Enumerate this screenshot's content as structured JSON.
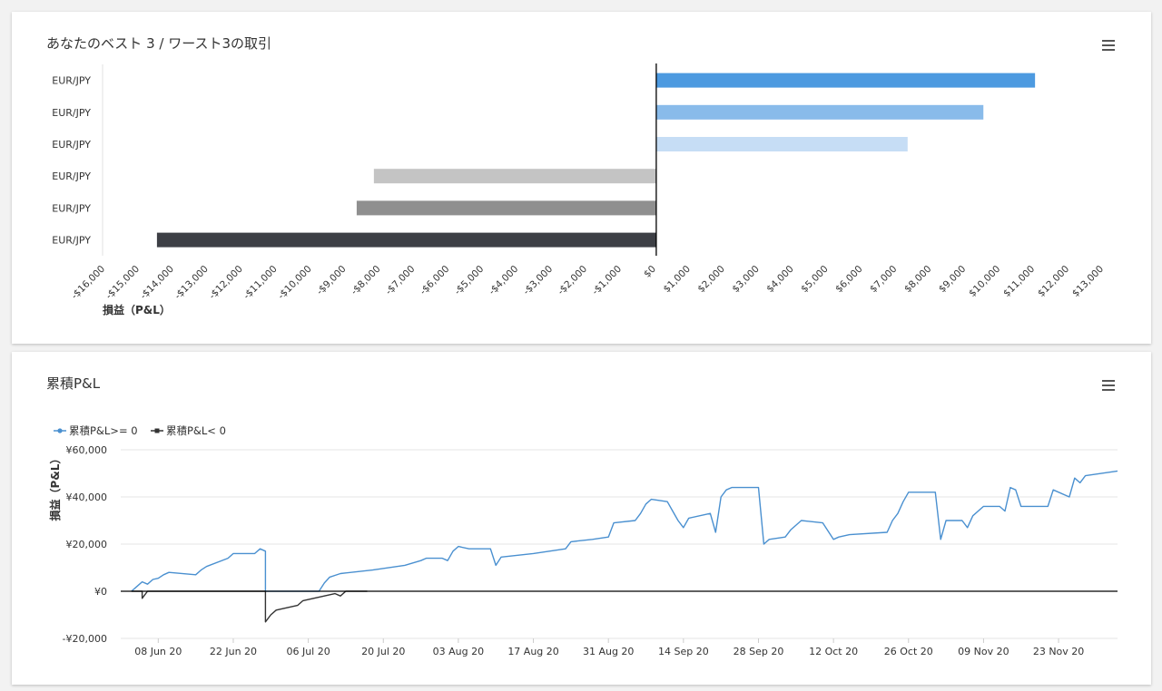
{
  "colors": {
    "positive_series": "#4a90d0",
    "negative_series": "#333333",
    "bars": [
      "#4d9ae0",
      "#89bbea",
      "#c6ddf5",
      "#c4c4c4",
      "#8f8f8f",
      "#3d3f45"
    ]
  },
  "chart_data": [
    {
      "type": "bar",
      "orientation": "horizontal",
      "title": "あなたのベスト 3 / ワースト3の取引",
      "xlabel": "損益（P&L）",
      "ylabel": "",
      "categories": [
        "EUR/JPY",
        "EUR/JPY",
        "EUR/JPY",
        "EUR/JPY",
        "EUR/JPY",
        "EUR/JPY"
      ],
      "values": [
        11000,
        9500,
        7300,
        -8200,
        -8700,
        -14500
      ],
      "xlim": [
        -16000,
        13000
      ],
      "xticks": [
        -16000,
        -15000,
        -14000,
        -13000,
        -12000,
        -11000,
        -10000,
        -9000,
        -8000,
        -7000,
        -6000,
        -5000,
        -4000,
        -3000,
        -2000,
        -1000,
        0,
        1000,
        2000,
        3000,
        4000,
        5000,
        6000,
        7000,
        8000,
        9000,
        10000,
        11000,
        12000,
        13000
      ],
      "xtick_labels": [
        "-$16,000",
        "-$15,000",
        "-$14,000",
        "-$13,000",
        "-$12,000",
        "-$11,000",
        "-$10,000",
        "-$9,000",
        "-$8,000",
        "-$7,000",
        "-$6,000",
        "-$5,000",
        "-$4,000",
        "-$3,000",
        "-$2,000",
        "-$1,000",
        "$0",
        "$1,000",
        "$2,000",
        "$3,000",
        "$4,000",
        "$5,000",
        "$6,000",
        "$7,000",
        "$8,000",
        "$9,000",
        "$10,000",
        "$11,000",
        "$12,000",
        "$13,000"
      ],
      "grid": false,
      "legend": "none"
    },
    {
      "type": "line",
      "title": "累積P&L",
      "xlabel": "",
      "ylabel": "損益（P&L）",
      "ylim": [
        -20000,
        60000
      ],
      "yticks": [
        -20000,
        0,
        20000,
        40000,
        60000
      ],
      "ytick_labels": [
        "-¥20,000",
        "¥0",
        "¥20,000",
        "¥40,000",
        "¥60,000"
      ],
      "xlim": [
        "2020-06-01",
        "2020-12-04"
      ],
      "xticks": [
        "2020-06-08",
        "2020-06-22",
        "2020-07-06",
        "2020-07-20",
        "2020-08-03",
        "2020-08-17",
        "2020-08-31",
        "2020-09-14",
        "2020-09-28",
        "2020-10-12",
        "2020-10-26",
        "2020-11-09",
        "2020-11-23"
      ],
      "xtick_labels": [
        "08 Jun 20",
        "22 Jun 20",
        "06 Jul 20",
        "20 Jul 20",
        "03 Aug 20",
        "17 Aug 20",
        "31 Aug 20",
        "14 Sep 20",
        "28 Sep 20",
        "12 Oct 20",
        "26 Oct 20",
        "09 Nov 20",
        "23 Nov 20"
      ],
      "legend": "top-left",
      "series": [
        {
          "name": "累積P&L>= 0",
          "points": [
            [
              "2020-06-03",
              0
            ],
            [
              "2020-06-04",
              2000
            ],
            [
              "2020-06-05",
              4000
            ],
            [
              "2020-06-06",
              3000
            ],
            [
              "2020-06-07",
              5000
            ],
            [
              "2020-06-08",
              5500
            ],
            [
              "2020-06-09",
              7000
            ],
            [
              "2020-06-10",
              8000
            ],
            [
              "2020-06-15",
              7000
            ],
            [
              "2020-06-16",
              9000
            ],
            [
              "2020-06-17",
              10500
            ],
            [
              "2020-06-21",
              14000
            ],
            [
              "2020-06-22",
              16000
            ],
            [
              "2020-06-26",
              16000
            ],
            [
              "2020-06-27",
              18000
            ],
            [
              "2020-06-28",
              17000
            ],
            [
              "2020-06-28",
              0
            ],
            [
              "2020-07-08",
              0
            ],
            [
              "2020-07-09",
              3500
            ],
            [
              "2020-07-10",
              6000
            ],
            [
              "2020-07-12",
              7500
            ],
            [
              "2020-07-18",
              9000
            ],
            [
              "2020-07-24",
              11000
            ],
            [
              "2020-07-27",
              13000
            ],
            [
              "2020-07-28",
              14000
            ],
            [
              "2020-07-31",
              14000
            ],
            [
              "2020-08-01",
              13000
            ],
            [
              "2020-08-02",
              17000
            ],
            [
              "2020-08-03",
              19000
            ],
            [
              "2020-08-05",
              18000
            ],
            [
              "2020-08-09",
              18000
            ],
            [
              "2020-08-10",
              11000
            ],
            [
              "2020-08-11",
              14500
            ],
            [
              "2020-08-17",
              16000
            ],
            [
              "2020-08-23",
              18000
            ],
            [
              "2020-08-24",
              21000
            ],
            [
              "2020-08-28",
              22000
            ],
            [
              "2020-08-31",
              23000
            ],
            [
              "2020-09-01",
              29000
            ],
            [
              "2020-09-05",
              30000
            ],
            [
              "2020-09-06",
              33000
            ],
            [
              "2020-09-07",
              37000
            ],
            [
              "2020-09-08",
              39000
            ],
            [
              "2020-09-11",
              38000
            ],
            [
              "2020-09-12",
              34000
            ],
            [
              "2020-09-13",
              30000
            ],
            [
              "2020-09-14",
              27000
            ],
            [
              "2020-09-15",
              31000
            ],
            [
              "2020-09-19",
              33000
            ],
            [
              "2020-09-20",
              25000
            ],
            [
              "2020-09-21",
              40000
            ],
            [
              "2020-09-22",
              43000
            ],
            [
              "2020-09-23",
              44000
            ],
            [
              "2020-09-28",
              44000
            ],
            [
              "2020-09-29",
              20000
            ],
            [
              "2020-09-30",
              22000
            ],
            [
              "2020-10-03",
              23000
            ],
            [
              "2020-10-04",
              26000
            ],
            [
              "2020-10-06",
              30000
            ],
            [
              "2020-10-10",
              29000
            ],
            [
              "2020-10-12",
              22000
            ],
            [
              "2020-10-13",
              23000
            ],
            [
              "2020-10-15",
              24000
            ],
            [
              "2020-10-22",
              25000
            ],
            [
              "2020-10-23",
              30000
            ],
            [
              "2020-10-24",
              33000
            ],
            [
              "2020-10-25",
              38000
            ],
            [
              "2020-10-26",
              42000
            ],
            [
              "2020-10-31",
              42000
            ],
            [
              "2020-11-01",
              22000
            ],
            [
              "2020-11-02",
              30000
            ],
            [
              "2020-11-05",
              30000
            ],
            [
              "2020-11-06",
              27000
            ],
            [
              "2020-11-07",
              32000
            ],
            [
              "2020-11-09",
              36000
            ],
            [
              "2020-11-12",
              36000
            ],
            [
              "2020-11-13",
              34000
            ],
            [
              "2020-11-14",
              44000
            ],
            [
              "2020-11-15",
              43000
            ],
            [
              "2020-11-16",
              36000
            ],
            [
              "2020-11-21",
              36000
            ],
            [
              "2020-11-22",
              43000
            ],
            [
              "2020-11-25",
              40000
            ],
            [
              "2020-11-26",
              48000
            ],
            [
              "2020-11-27",
              46000
            ],
            [
              "2020-11-28",
              49000
            ],
            [
              "2020-12-04",
              51000
            ]
          ]
        },
        {
          "name": "累積P&L< 0",
          "points": [
            [
              "2020-06-03",
              0
            ],
            [
              "2020-06-05",
              0
            ],
            [
              "2020-06-05",
              -3000
            ],
            [
              "2020-06-06",
              0
            ],
            [
              "2020-06-28",
              0
            ],
            [
              "2020-06-28",
              -13000
            ],
            [
              "2020-06-29",
              -10000
            ],
            [
              "2020-06-30",
              -8000
            ],
            [
              "2020-07-02",
              -7000
            ],
            [
              "2020-07-04",
              -6000
            ],
            [
              "2020-07-05",
              -4000
            ],
            [
              "2020-07-07",
              -3000
            ],
            [
              "2020-07-09",
              -2000
            ],
            [
              "2020-07-11",
              -1000
            ],
            [
              "2020-07-12",
              -2000
            ],
            [
              "2020-07-13",
              0
            ],
            [
              "2020-07-17",
              0
            ]
          ]
        }
      ]
    }
  ]
}
